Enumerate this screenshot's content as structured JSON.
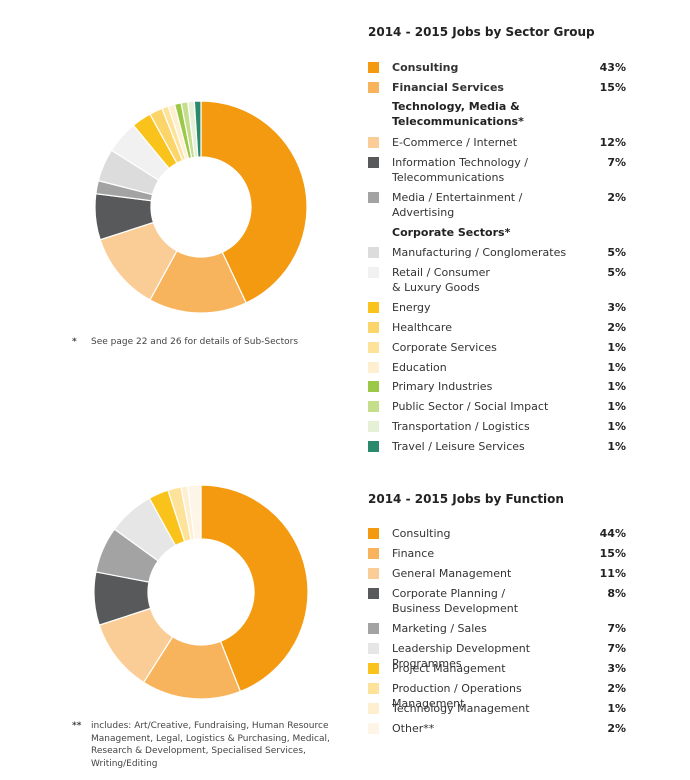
{
  "chart_data": [
    {
      "type": "pie",
      "variant": "donut",
      "title": "2014 - 2015 Jobs by Sector Group",
      "footnote_mark": "*",
      "footnote": "See page 22 and 26 for details of Sub-Sectors",
      "subheadings": [
        "Technology, Media &\nTelecommunications*",
        "Corporate Sectors*"
      ],
      "slices": [
        {
          "label": "Consulting",
          "value": 43,
          "display": "43%",
          "color": "#f39a10",
          "bold": true
        },
        {
          "label": "Financial Services",
          "value": 15,
          "display": "15%",
          "color": "#f8b45c",
          "bold": true
        },
        {
          "label": "E-Commerce / Internet",
          "value": 12,
          "display": "12%",
          "color": "#fbcd96"
        },
        {
          "label": "Information Technology /\nTelecommunications",
          "value": 7,
          "display": "7%",
          "color": "#58595b"
        },
        {
          "label": "Media / Entertainment /\nAdvertising",
          "value": 2,
          "display": "2%",
          "color": "#a3a3a3"
        },
        {
          "label": "Manufacturing / Conglomerates",
          "value": 5,
          "display": "5%",
          "color": "#dcdcdc"
        },
        {
          "label": "Retail / Consumer\n& Luxury Goods",
          "value": 5,
          "display": "5%",
          "color": "#f1f1f1"
        },
        {
          "label": "Energy",
          "value": 3,
          "display": "3%",
          "color": "#f9c31c"
        },
        {
          "label": "Healthcare",
          "value": 2,
          "display": "2%",
          "color": "#fbd46a"
        },
        {
          "label": "Corporate Services",
          "value": 1,
          "display": "1%",
          "color": "#fde29a"
        },
        {
          "label": "Education",
          "value": 1,
          "display": "1%",
          "color": "#fdefcf"
        },
        {
          "label": "Primary Industries",
          "value": 1,
          "display": "1%",
          "color": "#9cc848"
        },
        {
          "label": "Public Sector / Social Impact",
          "value": 1,
          "display": "1%",
          "color": "#c4de8c"
        },
        {
          "label": "Transportation / Logistics",
          "value": 1,
          "display": "1%",
          "color": "#e6f0d6"
        },
        {
          "label": "Travel / Leisure Services",
          "value": 1,
          "display": "1%",
          "color": "#2c8a6c"
        }
      ]
    },
    {
      "type": "pie",
      "variant": "donut",
      "title": "2014 - 2015 Jobs by Function",
      "footnote_mark": "**",
      "footnote": "includes: Art/Creative, Fundraising, Human Resource Management, Legal, Logistics & Purchasing, Medical, Research & Development, Specialised Services, Writing/Editing",
      "slices": [
        {
          "label": "Consulting",
          "value": 44,
          "display": "44%",
          "color": "#f39a10"
        },
        {
          "label": "Finance",
          "value": 15,
          "display": "15%",
          "color": "#f8b45c"
        },
        {
          "label": "General Management",
          "value": 11,
          "display": "11%",
          "color": "#fbcd96"
        },
        {
          "label": "Corporate Planning /\nBusiness Development",
          "value": 8,
          "display": "8%",
          "color": "#58595b"
        },
        {
          "label": "Marketing / Sales",
          "value": 7,
          "display": "7%",
          "color": "#a3a3a3"
        },
        {
          "label": "Leadership Development Programmes",
          "value": 7,
          "display": "7%",
          "color": "#e6e6e6"
        },
        {
          "label": "Project Management",
          "value": 3,
          "display": "3%",
          "color": "#f9c31c"
        },
        {
          "label": "Production / Operations Management",
          "value": 2,
          "display": "2%",
          "color": "#fde29a"
        },
        {
          "label": "Technology Management",
          "value": 1,
          "display": "1%",
          "color": "#fdefcf"
        },
        {
          "label": "Other**",
          "value": 2,
          "display": "2%",
          "color": "#fdf6e8"
        }
      ]
    }
  ]
}
